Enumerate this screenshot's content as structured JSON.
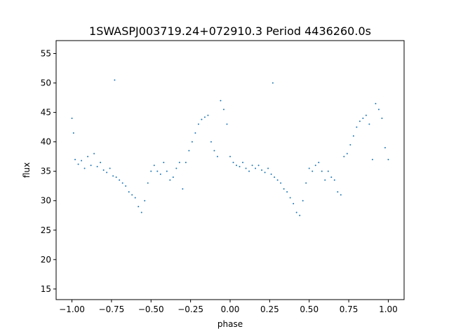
{
  "chart_data": {
    "type": "scatter",
    "title": "1SWASPJ003719.24+072910.3 Period 4436260.0s",
    "xlabel": "phase",
    "ylabel": "flux",
    "xlim": [
      -1.1,
      1.1
    ],
    "ylim": [
      13.2,
      57.2
    ],
    "xticks": [
      -1.0,
      -0.75,
      -0.5,
      -0.25,
      0.0,
      0.25,
      0.5,
      0.75,
      1.0
    ],
    "xtick_labels": [
      "−1.00",
      "−0.75",
      "−0.50",
      "−0.25",
      "0.00",
      "0.25",
      "0.50",
      "0.75",
      "1.00"
    ],
    "yticks": [
      15,
      20,
      25,
      30,
      35,
      40,
      45,
      50,
      55
    ],
    "ytick_labels": [
      "15",
      "20",
      "25",
      "30",
      "35",
      "40",
      "45",
      "50",
      "55"
    ],
    "grid": false,
    "series": [
      {
        "color": "#1f77b4",
        "points": [
          [
            -1.0,
            44.0
          ],
          [
            -0.99,
            41.5
          ],
          [
            -0.98,
            37.0
          ],
          [
            -0.96,
            36.2
          ],
          [
            -0.94,
            36.8
          ],
          [
            -0.92,
            35.5
          ],
          [
            -0.9,
            37.5
          ],
          [
            -0.88,
            36.0
          ],
          [
            -0.86,
            38.0
          ],
          [
            -0.84,
            35.8
          ],
          [
            -0.82,
            36.5
          ],
          [
            -0.8,
            35.2
          ],
          [
            -0.78,
            34.8
          ],
          [
            -0.76,
            35.5
          ],
          [
            -0.74,
            34.2
          ],
          [
            -0.73,
            50.5
          ],
          [
            -0.72,
            34.0
          ],
          [
            -0.7,
            33.5
          ],
          [
            -0.68,
            33.0
          ],
          [
            -0.66,
            32.5
          ],
          [
            -0.64,
            31.5
          ],
          [
            -0.62,
            31.0
          ],
          [
            -0.6,
            30.5
          ],
          [
            -0.58,
            29.0
          ],
          [
            -0.56,
            28.0
          ],
          [
            -0.54,
            30.0
          ],
          [
            -0.52,
            33.0
          ],
          [
            -0.5,
            35.0
          ],
          [
            -0.48,
            36.0
          ],
          [
            -0.46,
            35.0
          ],
          [
            -0.44,
            34.5
          ],
          [
            -0.42,
            36.5
          ],
          [
            -0.4,
            35.0
          ],
          [
            -0.38,
            33.5
          ],
          [
            -0.36,
            34.0
          ],
          [
            -0.34,
            35.5
          ],
          [
            -0.32,
            36.5
          ],
          [
            -0.3,
            32.0
          ],
          [
            -0.28,
            36.5
          ],
          [
            -0.26,
            38.5
          ],
          [
            -0.24,
            40.0
          ],
          [
            -0.22,
            41.5
          ],
          [
            -0.2,
            43.0
          ],
          [
            -0.18,
            43.8
          ],
          [
            -0.16,
            44.2
          ],
          [
            -0.14,
            44.5
          ],
          [
            -0.12,
            40.0
          ],
          [
            -0.1,
            38.5
          ],
          [
            -0.08,
            37.5
          ],
          [
            -0.06,
            47.0
          ],
          [
            -0.04,
            45.5
          ],
          [
            -0.02,
            43.0
          ],
          [
            0.0,
            37.5
          ],
          [
            0.02,
            36.5
          ],
          [
            0.04,
            36.0
          ],
          [
            0.06,
            35.8
          ],
          [
            0.08,
            36.5
          ],
          [
            0.1,
            35.5
          ],
          [
            0.12,
            35.0
          ],
          [
            0.14,
            36.0
          ],
          [
            0.16,
            35.5
          ],
          [
            0.18,
            36.0
          ],
          [
            0.2,
            35.2
          ],
          [
            0.22,
            34.8
          ],
          [
            0.24,
            35.5
          ],
          [
            0.26,
            34.5
          ],
          [
            0.27,
            50.0
          ],
          [
            0.28,
            34.0
          ],
          [
            0.3,
            33.5
          ],
          [
            0.32,
            33.0
          ],
          [
            0.34,
            32.0
          ],
          [
            0.36,
            31.5
          ],
          [
            0.38,
            30.5
          ],
          [
            0.4,
            29.5
          ],
          [
            0.42,
            28.0
          ],
          [
            0.44,
            27.5
          ],
          [
            0.46,
            30.0
          ],
          [
            0.48,
            33.0
          ],
          [
            0.5,
            35.5
          ],
          [
            0.52,
            35.0
          ],
          [
            0.54,
            36.0
          ],
          [
            0.56,
            36.5
          ],
          [
            0.58,
            35.0
          ],
          [
            0.6,
            33.5
          ],
          [
            0.62,
            35.0
          ],
          [
            0.64,
            34.0
          ],
          [
            0.66,
            33.5
          ],
          [
            0.68,
            31.5
          ],
          [
            0.7,
            31.0
          ],
          [
            0.72,
            37.5
          ],
          [
            0.74,
            38.0
          ],
          [
            0.76,
            39.5
          ],
          [
            0.78,
            41.0
          ],
          [
            0.8,
            42.5
          ],
          [
            0.82,
            43.5
          ],
          [
            0.84,
            44.0
          ],
          [
            0.86,
            44.5
          ],
          [
            0.88,
            43.0
          ],
          [
            0.9,
            37.0
          ],
          [
            0.92,
            46.5
          ],
          [
            0.94,
            45.5
          ],
          [
            0.96,
            44.0
          ],
          [
            0.98,
            39.0
          ],
          [
            1.0,
            37.0
          ]
        ]
      }
    ]
  }
}
